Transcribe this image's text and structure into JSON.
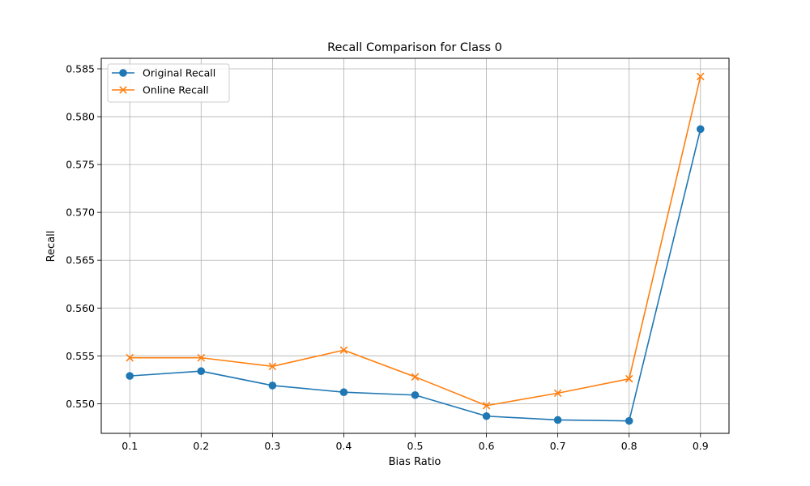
{
  "chart_data": {
    "type": "line",
    "title": "Recall Comparison for Class 0",
    "xlabel": "Bias Ratio",
    "ylabel": "Recall",
    "x": [
      0.1,
      0.2,
      0.3,
      0.4,
      0.5,
      0.6,
      0.7,
      0.8,
      0.9
    ],
    "x_ticks": [
      "0.1",
      "0.2",
      "0.3",
      "0.4",
      "0.5",
      "0.6",
      "0.7",
      "0.8",
      "0.9"
    ],
    "y_ticks": [
      "0.550",
      "0.555",
      "0.560",
      "0.565",
      "0.570",
      "0.575",
      "0.580",
      "0.585"
    ],
    "xlim": [
      0.06,
      0.94
    ],
    "ylim": [
      0.5469,
      0.5861
    ],
    "grid": true,
    "legend_position": "top-left",
    "series": [
      {
        "name": "Original Recall",
        "color": "#1f77b4",
        "marker": "circle",
        "values": [
          0.5529,
          0.5534,
          0.5519,
          0.5512,
          0.5509,
          0.5487,
          0.5483,
          0.5482,
          0.5787
        ]
      },
      {
        "name": "Online Recall",
        "color": "#ff7f0e",
        "marker": "x",
        "values": [
          0.5548,
          0.5548,
          0.5539,
          0.5556,
          0.5528,
          0.5498,
          0.5511,
          0.5526,
          0.5842
        ]
      }
    ]
  }
}
